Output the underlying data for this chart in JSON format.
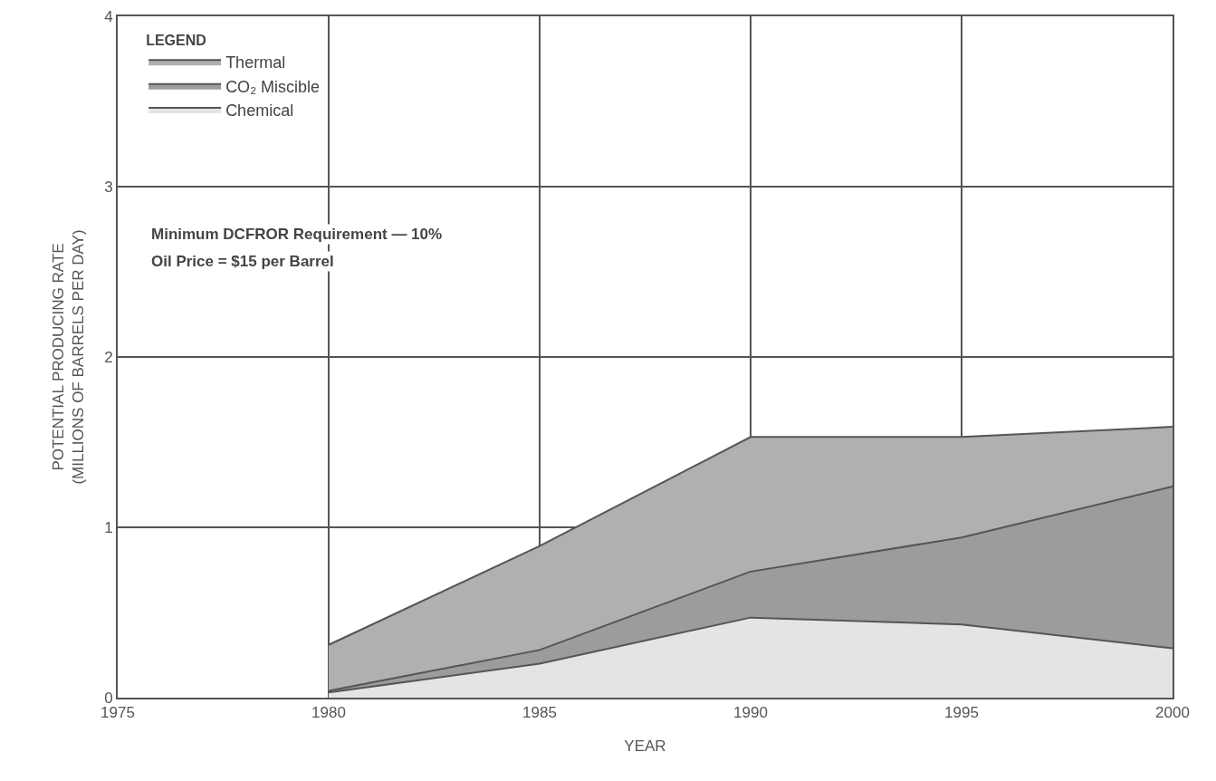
{
  "chart_data": {
    "type": "area",
    "stacked": true,
    "xlabel": "YEAR",
    "ylabel": "POTENTIAL PRODUCING RATE\n(MILLIONS OF BARRELS PER DAY)",
    "legend_title": "LEGEND",
    "x": [
      1980,
      1985,
      1990,
      1995,
      2000
    ],
    "series": [
      {
        "name": "Chemical",
        "color": "#e4e4e4",
        "values": [
          0.03,
          0.2,
          0.47,
          0.43,
          0.29
        ]
      },
      {
        "name": "CO₂ Miscible",
        "color": "#9c9c9c",
        "values": [
          0.01,
          0.08,
          0.27,
          0.51,
          0.95
        ]
      },
      {
        "name": "Thermal",
        "color": "#b0b0b0",
        "values": [
          0.27,
          0.61,
          0.79,
          0.59,
          0.35
        ]
      }
    ],
    "xlim": [
      1975,
      2000
    ],
    "xticks": [
      1975,
      1980,
      1985,
      1990,
      1995,
      2000
    ],
    "ylim": [
      0,
      4
    ],
    "yticks": [
      0,
      1,
      2,
      3,
      4
    ],
    "grid": true,
    "legend": "top left",
    "marker": "none",
    "line_style": "solid",
    "annotations": [
      "Minimum DCFROR Requirement — 10%",
      "Oil Price = $15 per Barrel"
    ]
  }
}
